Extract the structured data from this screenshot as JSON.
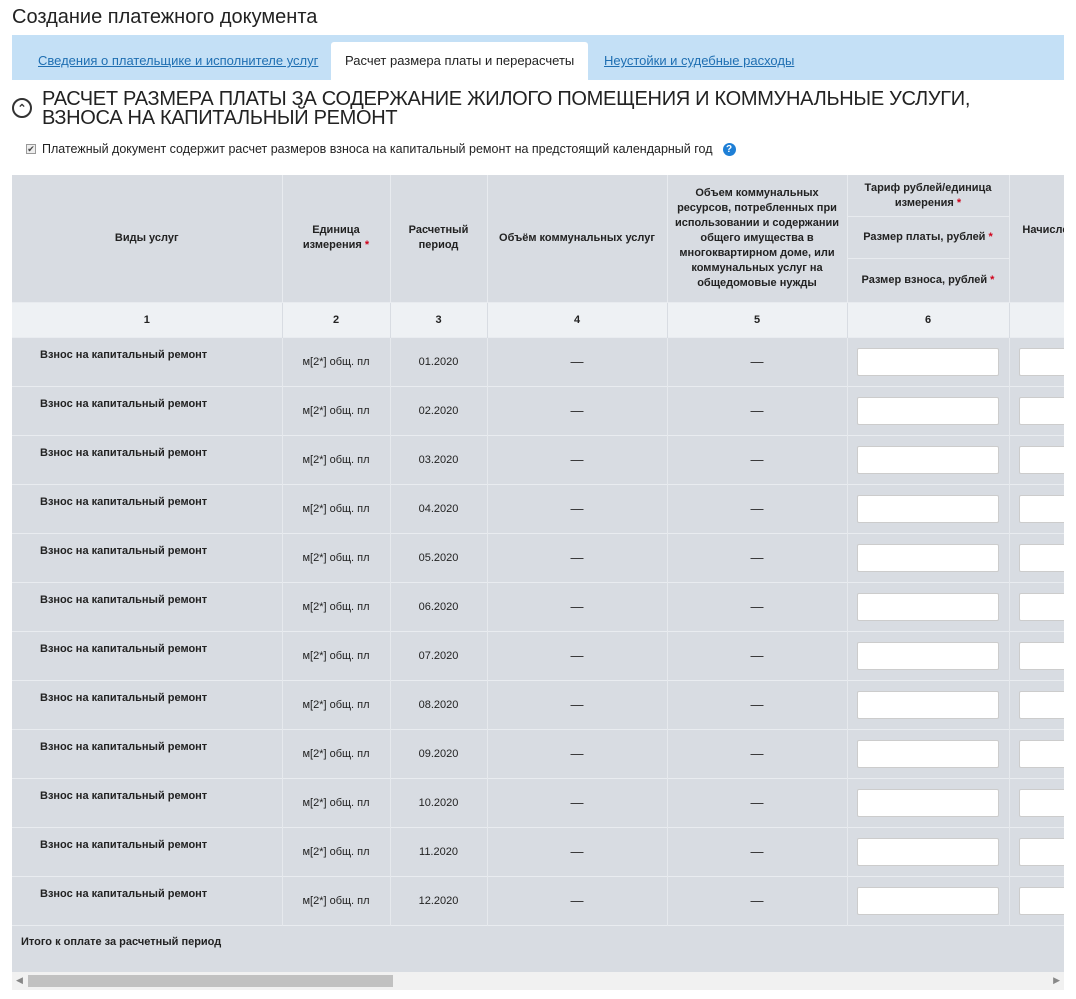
{
  "page_title": "Создание платежного документа",
  "tabs": [
    {
      "label": "Сведения о плательщике и исполнителе услуг",
      "active": false
    },
    {
      "label": "Расчет размера платы и перерасчеты",
      "active": true
    },
    {
      "label": "Неустойки и судебные расходы",
      "active": false
    }
  ],
  "section": {
    "title": "Расчет размера платы за содержание жилого помещения и коммунальные услуги, взноса на капитальный ремонт",
    "checkbox_label": "Платежный документ содержит расчет размеров взноса на капитальный ремонт на предстоящий календарный год",
    "checkbox_checked": true
  },
  "table": {
    "headers": {
      "c1": "Виды услуг",
      "c2": "Единица измерения",
      "c3": "Расчетный период",
      "c4": "Объём коммунальных услуг",
      "c5": "Объем коммунальных ресурсов, потребленных при использовании и содержании общего имущества в многоквартирном доме, или коммунальных услуг на общедомовые нужды",
      "c6a": "Тариф рублей/единица измерения",
      "c6b": "Размер платы, рублей",
      "c6c": "Размер взноса, рублей",
      "c7": "Начислено за расчетный период",
      "required": "*"
    },
    "numbers": [
      "1",
      "2",
      "3",
      "4",
      "5",
      "6",
      ""
    ],
    "rows": [
      {
        "service": "Взнос на капитальный ремонт",
        "unit": "м[2*] общ. пл",
        "period": "01.2020",
        "vol": "—",
        "vol_common": "—"
      },
      {
        "service": "Взнос на капитальный ремонт",
        "unit": "м[2*] общ. пл",
        "period": "02.2020",
        "vol": "—",
        "vol_common": "—"
      },
      {
        "service": "Взнос на капитальный ремонт",
        "unit": "м[2*] общ. пл",
        "period": "03.2020",
        "vol": "—",
        "vol_common": "—"
      },
      {
        "service": "Взнос на капитальный ремонт",
        "unit": "м[2*] общ. пл",
        "period": "04.2020",
        "vol": "—",
        "vol_common": "—"
      },
      {
        "service": "Взнос на капитальный ремонт",
        "unit": "м[2*] общ. пл",
        "period": "05.2020",
        "vol": "—",
        "vol_common": "—"
      },
      {
        "service": "Взнос на капитальный ремонт",
        "unit": "м[2*] общ. пл",
        "period": "06.2020",
        "vol": "—",
        "vol_common": "—"
      },
      {
        "service": "Взнос на капитальный ремонт",
        "unit": "м[2*] общ. пл",
        "period": "07.2020",
        "vol": "—",
        "vol_common": "—"
      },
      {
        "service": "Взнос на капитальный ремонт",
        "unit": "м[2*] общ. пл",
        "period": "08.2020",
        "vol": "—",
        "vol_common": "—"
      },
      {
        "service": "Взнос на капитальный ремонт",
        "unit": "м[2*] общ. пл",
        "period": "09.2020",
        "vol": "—",
        "vol_common": "—"
      },
      {
        "service": "Взнос на капитальный ремонт",
        "unit": "м[2*] общ. пл",
        "period": "10.2020",
        "vol": "—",
        "vol_common": "—"
      },
      {
        "service": "Взнос на капитальный ремонт",
        "unit": "м[2*] общ. пл",
        "period": "11.2020",
        "vol": "—",
        "vol_common": "—"
      },
      {
        "service": "Взнос на капитальный ремонт",
        "unit": "м[2*] общ. пл",
        "period": "12.2020",
        "vol": "—",
        "vol_common": "—"
      }
    ],
    "total_label": "Итого к оплате за расчетный период"
  },
  "colors": {
    "tabbar": "#c4e0f6",
    "link": "#1f6fb2",
    "table_bg": "#d8dce2",
    "required": "#d0021b"
  }
}
